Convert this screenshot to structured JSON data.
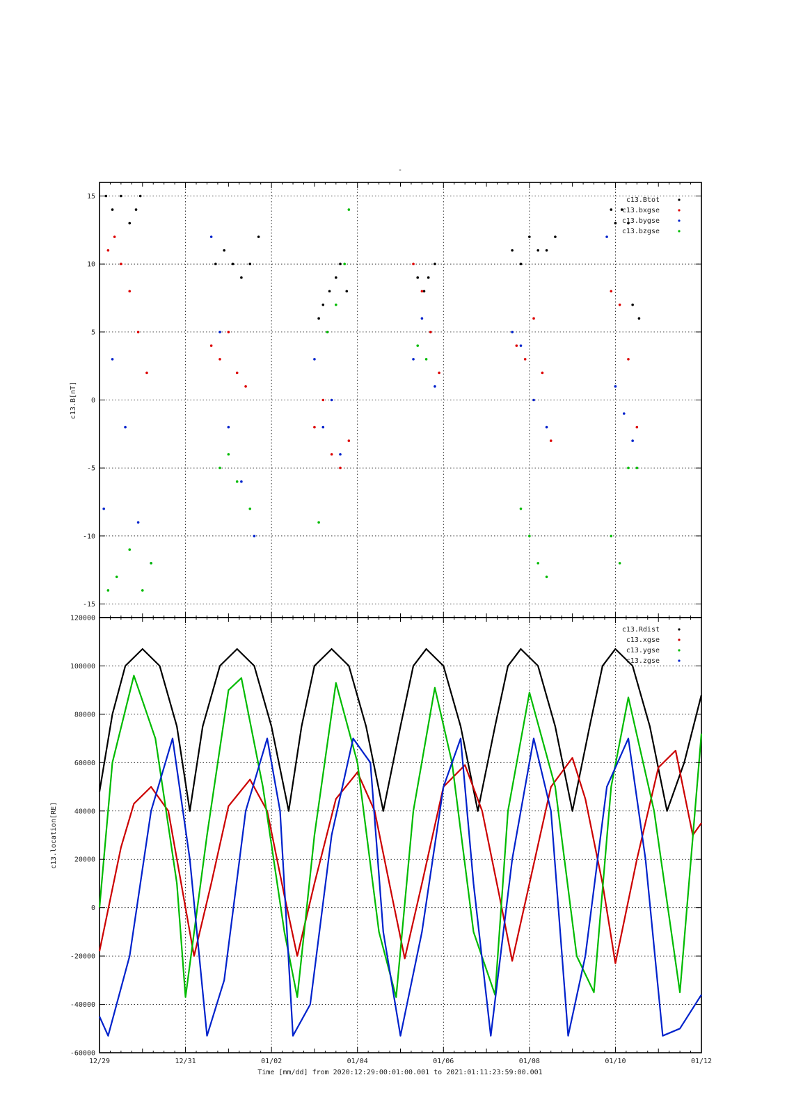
{
  "figure": {
    "title_mark": "-",
    "time_caption": "Time [mm/dd]  from 2020:12:29:00:01:00.001  to  2021:01:11:23:59:00.001"
  },
  "chart_data": [
    {
      "type": "scatter",
      "name": "magnetic-field-panel",
      "ylabel": "c13.B[nT]",
      "xlabel": "",
      "x_unit": "days from 2020-12-29 00:00",
      "xlim": [
        0,
        14
      ],
      "ylim": [
        -16,
        16
      ],
      "yticks": [
        -15,
        -10,
        -5,
        0,
        5,
        10,
        15
      ],
      "grid": true,
      "legend_position": "top-right",
      "legend": [
        "c13.Btot",
        "c13.bxgse",
        "c13.bygse",
        "c13.bzgse"
      ],
      "series": [
        {
          "name": "c13.Btot",
          "color": "#000000",
          "x": [
            0.15,
            0.3,
            0.5,
            0.7,
            0.85,
            0.95,
            2.7,
            2.9,
            3.1,
            3.3,
            3.5,
            3.7,
            5.1,
            5.2,
            5.35,
            5.5,
            5.6,
            5.75,
            7.4,
            7.55,
            7.65,
            7.8,
            9.6,
            9.8,
            10.0,
            10.2,
            10.4,
            10.6,
            11.9,
            12.0,
            12.15,
            12.3,
            12.4,
            12.55
          ],
          "y": [
            15,
            14,
            15,
            13,
            14,
            15,
            10,
            11,
            10,
            9,
            10,
            12,
            6,
            7,
            8,
            9,
            10,
            8,
            9,
            8,
            9,
            10,
            11,
            10,
            12,
            11,
            11,
            12,
            14,
            13,
            14,
            13,
            7,
            6
          ]
        },
        {
          "name": "c13.bxgse",
          "color": "#dd0000",
          "x": [
            0.2,
            0.35,
            0.5,
            0.7,
            0.9,
            1.1,
            2.6,
            2.8,
            3.0,
            3.2,
            3.4,
            5.0,
            5.2,
            5.4,
            5.6,
            5.8,
            7.3,
            7.5,
            7.7,
            7.9,
            9.7,
            9.9,
            10.1,
            10.3,
            10.5,
            11.9,
            12.1,
            12.3,
            12.5
          ],
          "y": [
            11,
            12,
            10,
            8,
            5,
            2,
            4,
            3,
            5,
            2,
            1,
            -2,
            0,
            -4,
            -5,
            -3,
            10,
            8,
            5,
            2,
            4,
            3,
            6,
            2,
            -3,
            8,
            7,
            3,
            -2
          ]
        },
        {
          "name": "c13.bygse",
          "color": "#0022cc",
          "x": [
            0.1,
            0.3,
            0.6,
            0.9,
            1.2,
            2.6,
            2.8,
            3.0,
            3.3,
            3.6,
            5.0,
            5.2,
            5.4,
            5.6,
            7.3,
            7.5,
            7.8,
            9.6,
            9.8,
            10.1,
            10.4,
            11.8,
            12.0,
            12.2,
            12.4
          ],
          "y": [
            -8,
            3,
            -2,
            -9,
            -12,
            12,
            5,
            -2,
            -6,
            -10,
            3,
            -2,
            0,
            -4,
            3,
            6,
            1,
            5,
            4,
            0,
            -2,
            12,
            1,
            -1,
            -3
          ]
        },
        {
          "name": "c13.bzgse",
          "color": "#00bb00",
          "x": [
            0.2,
            0.4,
            0.7,
            1.0,
            1.2,
            2.8,
            3.0,
            3.2,
            3.5,
            5.1,
            5.3,
            5.5,
            5.7,
            5.8,
            7.4,
            7.6,
            9.8,
            10.0,
            10.2,
            10.4,
            11.9,
            12.1,
            12.3,
            12.5
          ],
          "y": [
            -14,
            -13,
            -11,
            -14,
            -12,
            -5,
            -4,
            -6,
            -8,
            -9,
            5,
            7,
            10,
            14,
            4,
            3,
            -8,
            -10,
            -12,
            -13,
            -10,
            -12,
            -5,
            -5
          ]
        }
      ]
    },
    {
      "type": "line",
      "name": "location-panel",
      "ylabel": "c13.location[RE]",
      "xlabel": "Time [mm/dd]  from 2020:12:29:00:01:00.001  to  2021:01:11:23:59:00.001",
      "x_unit": "days from 2020-12-29 00:00",
      "xlim": [
        0,
        14
      ],
      "ylim": [
        -60000,
        120000
      ],
      "yticks": [
        -60000,
        -40000,
        -20000,
        0,
        20000,
        40000,
        60000,
        80000,
        100000,
        120000
      ],
      "x_tick_labels": [
        "12/29",
        "12/31",
        "01/02",
        "01/04",
        "01/06",
        "01/08",
        "01/10",
        "01/12"
      ],
      "x_tick_values": [
        0,
        2,
        4,
        6,
        8,
        10,
        12,
        14
      ],
      "grid": true,
      "legend_position": "top-right",
      "legend": [
        "c13.Rdist",
        "c13.xgse",
        "c13.ygse",
        "c13.zgse"
      ],
      "series": [
        {
          "name": "c13.Rdist",
          "color": "#000000",
          "x": [
            0,
            0.3,
            0.6,
            1.0,
            1.4,
            1.8,
            2.1,
            2.4,
            2.8,
            3.2,
            3.6,
            4.0,
            4.4,
            4.7,
            5.0,
            5.4,
            5.8,
            6.2,
            6.6,
            7.0,
            7.3,
            7.6,
            8.0,
            8.4,
            8.8,
            9.2,
            9.5,
            9.8,
            10.2,
            10.6,
            11.0,
            11.4,
            11.7,
            12.0,
            12.4,
            12.8,
            13.2,
            13.6,
            14.0
          ],
          "y": [
            48000,
            80000,
            100000,
            107000,
            100000,
            75000,
            40000,
            75000,
            100000,
            107000,
            100000,
            75000,
            40000,
            75000,
            100000,
            107000,
            100000,
            75000,
            40000,
            75000,
            100000,
            107000,
            100000,
            75000,
            40000,
            75000,
            100000,
            107000,
            100000,
            75000,
            40000,
            75000,
            100000,
            107000,
            100000,
            75000,
            40000,
            60000,
            88000
          ]
        },
        {
          "name": "c13.xgse",
          "color": "#cc0000",
          "x": [
            0,
            0.5,
            0.8,
            1.2,
            1.6,
            1.9,
            2.2,
            2.6,
            3.0,
            3.5,
            3.9,
            4.3,
            4.6,
            5.0,
            5.5,
            6.0,
            6.4,
            6.8,
            7.1,
            7.5,
            8.0,
            8.5,
            8.9,
            9.3,
            9.6,
            10.0,
            10.5,
            11.0,
            11.3,
            11.7,
            12.0,
            12.5,
            13.0,
            13.4,
            13.8,
            14.0
          ],
          "y": [
            -18000,
            25000,
            43000,
            50000,
            40000,
            10000,
            -20000,
            10000,
            42000,
            53000,
            40000,
            5000,
            -20000,
            10000,
            45000,
            56000,
            40000,
            5000,
            -21000,
            10000,
            50000,
            59000,
            40000,
            5000,
            -22000,
            10000,
            50000,
            62000,
            45000,
            10000,
            -23000,
            20000,
            58000,
            65000,
            30000,
            35000
          ]
        },
        {
          "name": "c13.ygse",
          "color": "#00bb00",
          "x": [
            0,
            0.3,
            0.8,
            1.3,
            1.8,
            2.0,
            2.5,
            3.0,
            3.3,
            3.8,
            4.3,
            4.6,
            5.0,
            5.5,
            6.0,
            6.5,
            6.9,
            7.3,
            7.8,
            8.2,
            8.7,
            9.2,
            9.5,
            10.0,
            10.6,
            11.1,
            11.5,
            11.9,
            12.3,
            12.9,
            13.5,
            14.0
          ],
          "y": [
            0,
            60000,
            96000,
            70000,
            10000,
            -37000,
            30000,
            90000,
            95000,
            50000,
            -10000,
            -37000,
            30000,
            93000,
            60000,
            -10000,
            -37000,
            40000,
            91000,
            60000,
            -10000,
            -36000,
            40000,
            89000,
            50000,
            -20000,
            -35000,
            50000,
            87000,
            40000,
            -35000,
            72000
          ]
        },
        {
          "name": "c13.zgse",
          "color": "#0022cc",
          "x": [
            0,
            0.2,
            0.7,
            1.2,
            1.7,
            2.1,
            2.5,
            2.9,
            3.4,
            3.9,
            4.2,
            4.5,
            4.9,
            5.4,
            5.9,
            6.3,
            6.6,
            7.0,
            7.5,
            8.0,
            8.4,
            8.7,
            9.1,
            9.6,
            10.1,
            10.5,
            10.9,
            11.3,
            11.8,
            12.3,
            12.7,
            13.1,
            13.5,
            14.0
          ],
          "y": [
            -45000,
            -53000,
            -20000,
            40000,
            70000,
            20000,
            -53000,
            -30000,
            40000,
            70000,
            40000,
            -53000,
            -40000,
            30000,
            70000,
            60000,
            -10000,
            -53000,
            -10000,
            50000,
            70000,
            10000,
            -53000,
            20000,
            70000,
            40000,
            -53000,
            -20000,
            50000,
            70000,
            20000,
            -53000,
            -50000,
            -36000
          ]
        }
      ]
    }
  ]
}
